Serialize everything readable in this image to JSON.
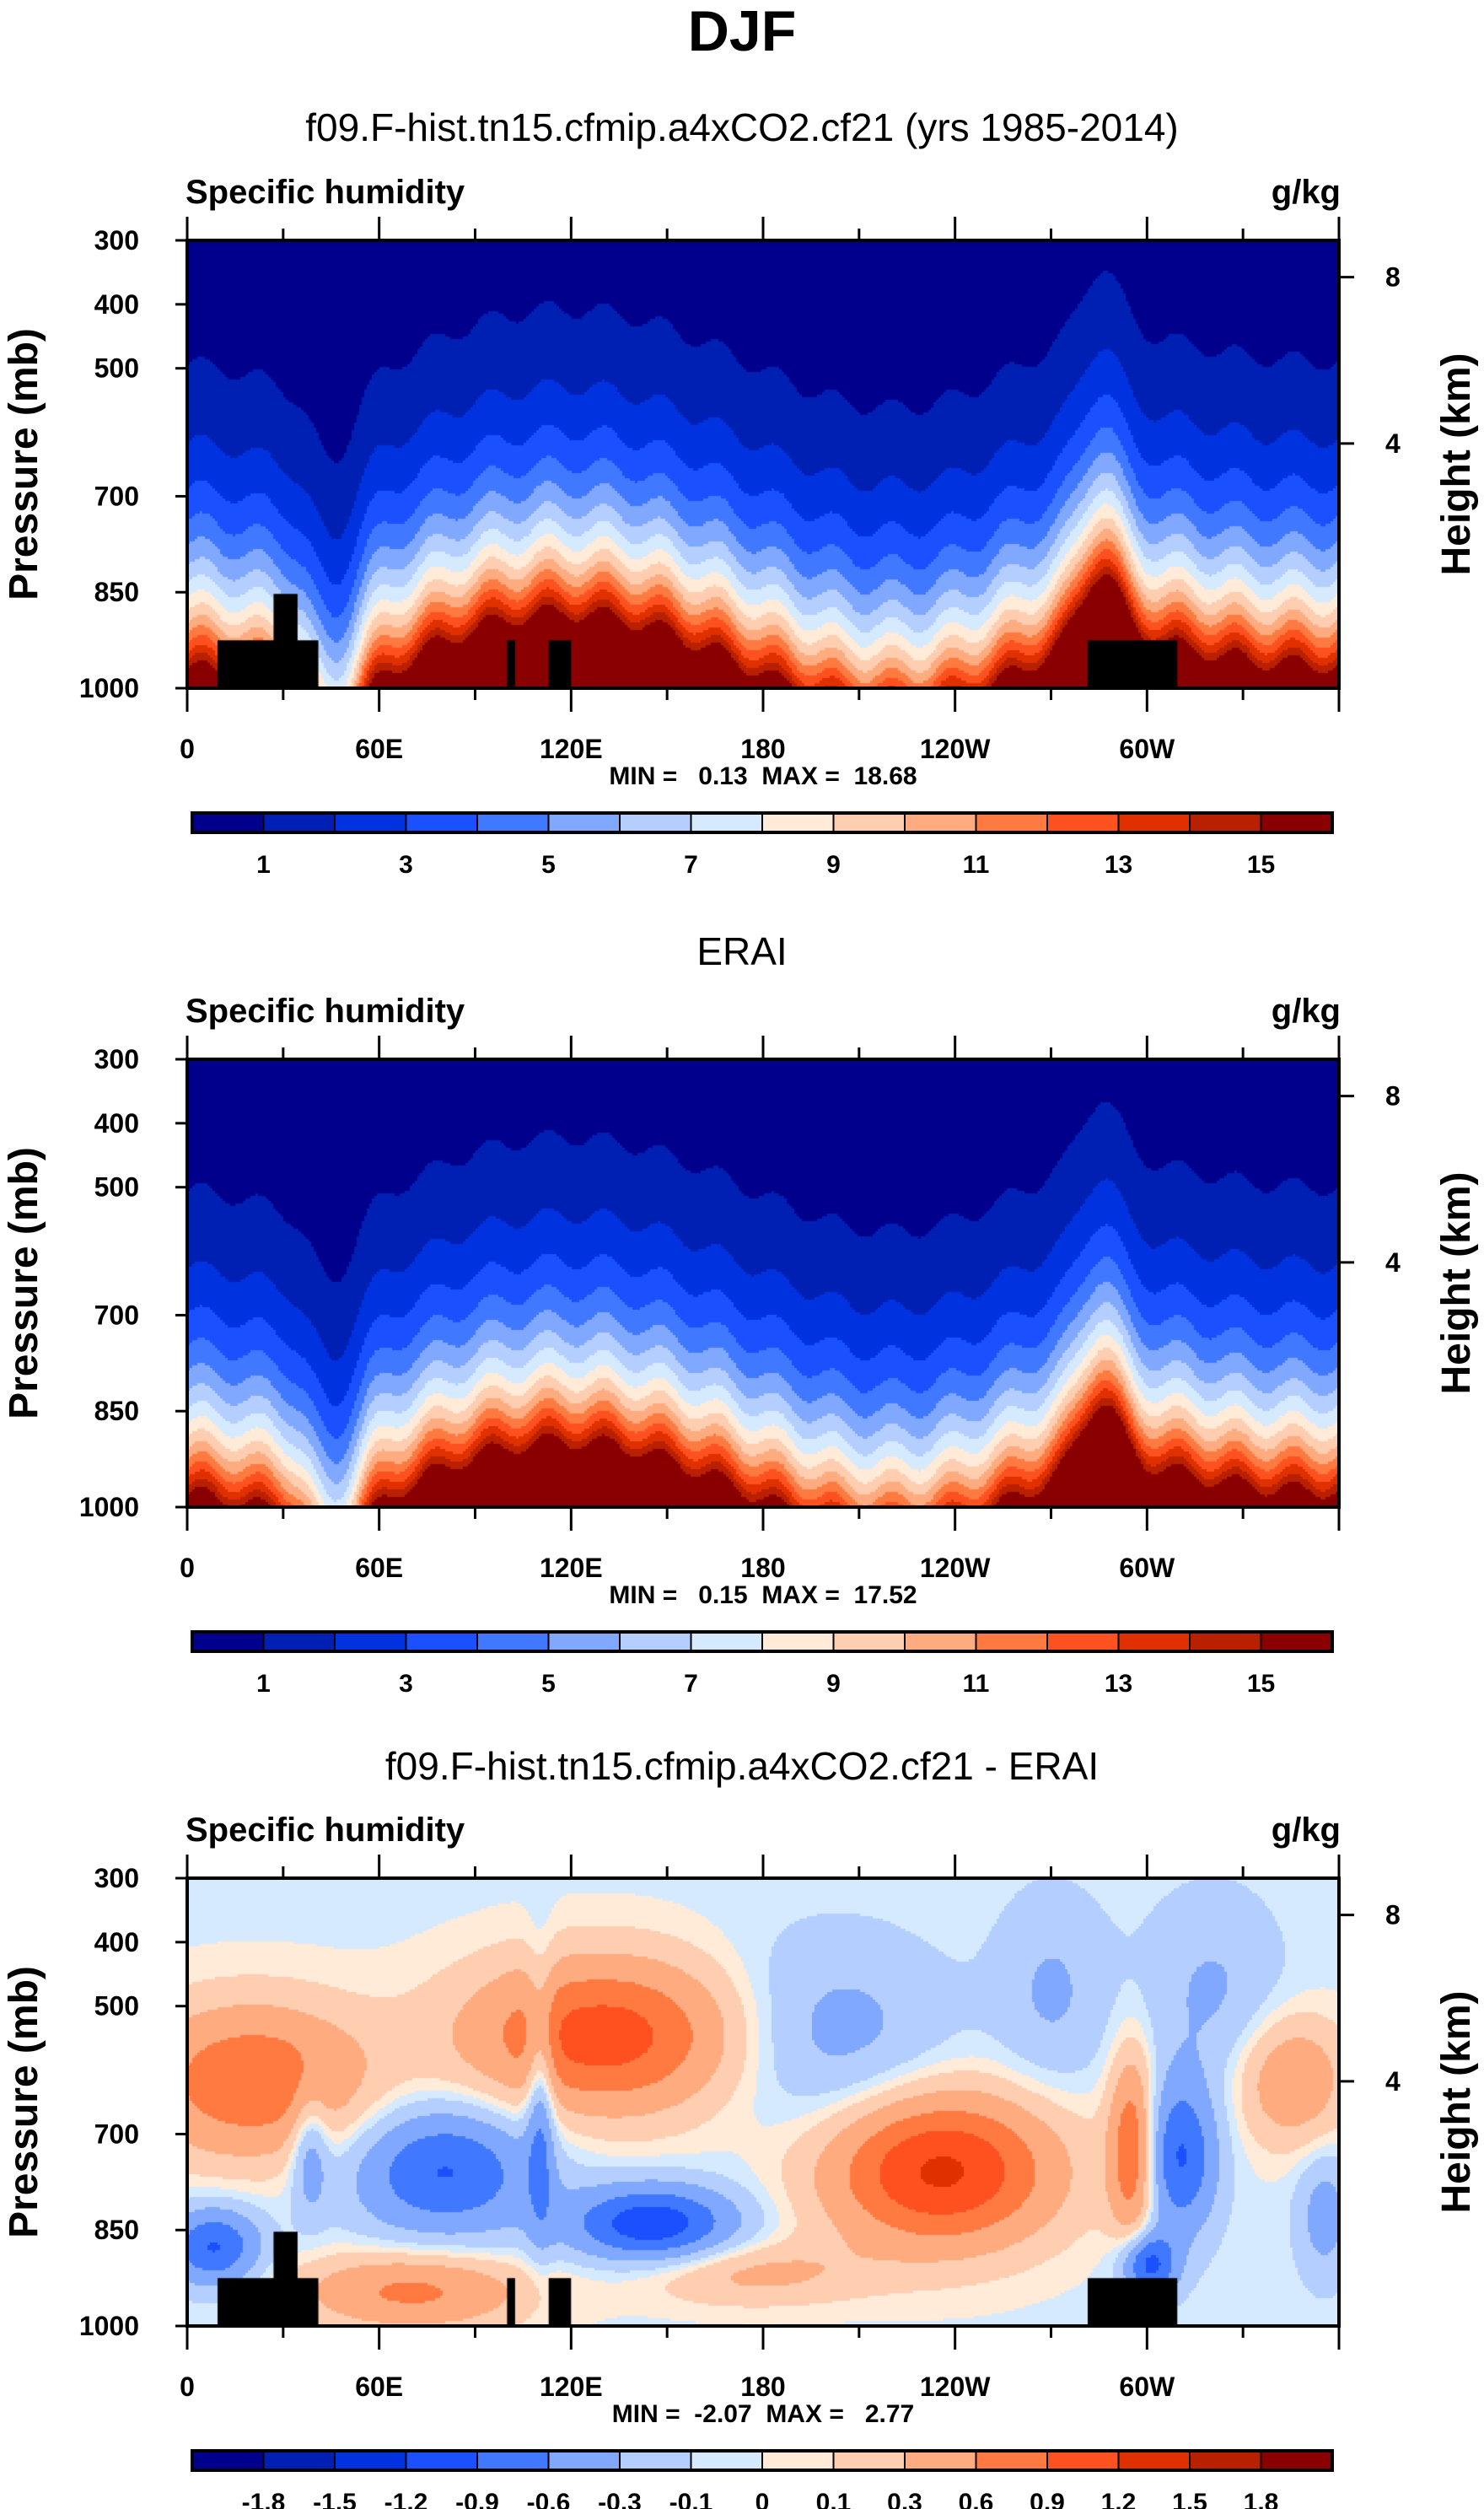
{
  "title": "DJF",
  "colors_main": [
    "#00008c",
    "#0020b4",
    "#0032e0",
    "#1a50ff",
    "#4078ff",
    "#80a8ff",
    "#b4ceff",
    "#d6eaff",
    "#ffebd8",
    "#ffcdb0",
    "#ffab80",
    "#ff7a40",
    "#ff5020",
    "#e03000",
    "#b82000",
    "#8a0000"
  ],
  "chart_data": [
    {
      "type": "heatmap",
      "title": "f09.F-hist.tn15.cfmip.a4xCO2.cf21 (yrs 1985-2014)",
      "left_string": "Specific humidity",
      "right_string": "g/kg",
      "xlabel": "",
      "ylabel": "Pressure (mb)",
      "ylabel_right": "Height (km)",
      "x_ticks": [
        "0",
        "60E",
        "120E",
        "180",
        "120W",
        "60W"
      ],
      "y_ticks": [
        "300",
        "400",
        "500",
        "700",
        "850",
        "1000"
      ],
      "y_ticks_right": [
        "8",
        "4"
      ],
      "stats": "MIN =   0.13  MAX =  18.68",
      "min": 0.13,
      "max": 18.68,
      "levels": [
        1,
        2,
        3,
        4,
        5,
        6,
        7,
        8,
        9,
        10,
        11,
        12,
        13,
        14,
        15
      ],
      "colorbar_labels": [
        "1",
        "3",
        "5",
        "7",
        "9",
        "11",
        "13",
        "15"
      ]
    },
    {
      "type": "heatmap",
      "title": "ERAI",
      "left_string": "Specific humidity",
      "right_string": "g/kg",
      "xlabel": "",
      "ylabel": "Pressure (mb)",
      "ylabel_right": "Height (km)",
      "x_ticks": [
        "0",
        "60E",
        "120E",
        "180",
        "120W",
        "60W"
      ],
      "y_ticks": [
        "300",
        "400",
        "500",
        "700",
        "850",
        "1000"
      ],
      "y_ticks_right": [
        "8",
        "4"
      ],
      "stats": "MIN =   0.15  MAX =  17.52",
      "min": 0.15,
      "max": 17.52,
      "levels": [
        1,
        2,
        3,
        4,
        5,
        6,
        7,
        8,
        9,
        10,
        11,
        12,
        13,
        14,
        15
      ],
      "colorbar_labels": [
        "1",
        "3",
        "5",
        "7",
        "9",
        "11",
        "13",
        "15"
      ]
    },
    {
      "type": "heatmap",
      "title": "f09.F-hist.tn15.cfmip.a4xCO2.cf21 - ERAI",
      "left_string": "Specific humidity",
      "right_string": "g/kg",
      "xlabel": "",
      "ylabel": "Pressure (mb)",
      "ylabel_right": "Height (km)",
      "x_ticks": [
        "0",
        "60E",
        "120E",
        "180",
        "120W",
        "60W"
      ],
      "y_ticks": [
        "300",
        "400",
        "500",
        "700",
        "850",
        "1000"
      ],
      "y_ticks_right": [
        "8",
        "4"
      ],
      "stats": "MIN =  -2.07  MAX =   2.77",
      "min": -2.07,
      "max": 2.77,
      "levels": [
        -1.8,
        -1.5,
        -1.2,
        -0.9,
        -0.6,
        -0.3,
        -0.1,
        0,
        0.1,
        0.3,
        0.6,
        0.9,
        1.2,
        1.5,
        1.8
      ],
      "colorbar_labels": [
        "-1.8",
        "-1.5",
        "-1.2",
        "-0.9",
        "-0.6",
        "-0.3",
        "-0.1",
        "0",
        "0.1",
        "0.3",
        "0.6",
        "0.9",
        "1.2",
        "1.5",
        "1.8"
      ]
    }
  ]
}
